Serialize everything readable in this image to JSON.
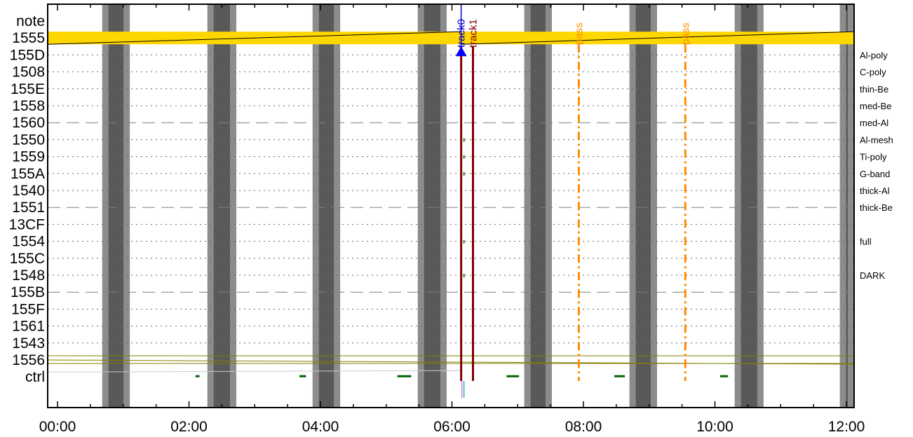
{
  "chart_data": {
    "type": "timeline",
    "x_range_hours": [
      0,
      12.2
    ],
    "x_ticks": [
      {
        "label": "00:00",
        "h": 0
      },
      {
        "label": "02:00",
        "h": 2
      },
      {
        "label": "04:00",
        "h": 4
      },
      {
        "label": "06:00",
        "h": 6
      },
      {
        "label": "08:00",
        "h": 8
      },
      {
        "label": "10:00",
        "h": 10
      },
      {
        "label": "12:00",
        "h": 12
      }
    ],
    "rows": [
      {
        "label": "note",
        "right": "",
        "line": "none"
      },
      {
        "label": "1555",
        "right": "",
        "line": "none"
      },
      {
        "label": "155D",
        "right": "Al-poly",
        "line": "dotted"
      },
      {
        "label": "1508",
        "right": "C-poly",
        "line": "dotted"
      },
      {
        "label": "155E",
        "right": "thin-Be",
        "line": "dotted"
      },
      {
        "label": "1558",
        "right": "med-Be",
        "line": "dotted"
      },
      {
        "label": "1560",
        "right": "med-Al",
        "line": "dashed"
      },
      {
        "label": "1550",
        "right": "Al-mesh",
        "line": "dotted"
      },
      {
        "label": "1559",
        "right": "Ti-poly",
        "line": "dotted"
      },
      {
        "label": "155A",
        "right": "G-band",
        "line": "dotted"
      },
      {
        "label": "1540",
        "right": "thick-Al",
        "line": "dotted"
      },
      {
        "label": "1551",
        "right": "thick-Be",
        "line": "dashed"
      },
      {
        "label": "13CF",
        "right": "",
        "line": "dotted"
      },
      {
        "label": "1554",
        "right": "full",
        "line": "dotted"
      },
      {
        "label": "155C",
        "right": "",
        "line": "dotted"
      },
      {
        "label": "1548",
        "right": "DARK",
        "line": "dotted"
      },
      {
        "label": "155B",
        "right": "",
        "line": "dashed"
      },
      {
        "label": "155F",
        "right": "",
        "line": "dotted"
      },
      {
        "label": "1561",
        "right": "",
        "line": "dotted"
      },
      {
        "label": "1543",
        "right": "",
        "line": "dotted"
      },
      {
        "label": "1556",
        "right": "",
        "line": "none"
      },
      {
        "label": "ctrl",
        "right": "",
        "line": "none"
      }
    ],
    "shadow_bands": [
      {
        "start": 0.68,
        "end": 1.1
      },
      {
        "start": 2.28,
        "end": 2.72
      },
      {
        "start": 3.88,
        "end": 4.3
      },
      {
        "start": 5.48,
        "end": 5.92
      },
      {
        "start": 7.1,
        "end": 7.52
      },
      {
        "start": 8.7,
        "end": 9.12
      },
      {
        "start": 10.3,
        "end": 10.74
      },
      {
        "start": 11.9,
        "end": 12.2
      }
    ],
    "shadow_colors": {
      "outer": "#8c8c8c",
      "inner": "#595959"
    },
    "yellow_band_color": "#ffd700",
    "tracks": [
      {
        "label": "track0",
        "h": 6.14,
        "color": "#0000cc"
      },
      {
        "label": "track1",
        "h": 6.32,
        "color": "#800000"
      }
    ],
    "passes": [
      {
        "label": "pass",
        "h": 7.93,
        "color": "#ff8c00"
      },
      {
        "label": "pass",
        "h": 9.55,
        "color": "#ff8c00"
      }
    ],
    "ctrl_marks": [
      {
        "start": 2.1,
        "end": 2.16
      },
      {
        "start": 3.68,
        "end": 3.78
      },
      {
        "start": 5.17,
        "end": 5.38
      },
      {
        "start": 6.83,
        "end": 7.02
      },
      {
        "start": 8.47,
        "end": 8.63
      },
      {
        "start": 10.08,
        "end": 10.2
      }
    ],
    "ctrl_mark_color": "#006400"
  }
}
